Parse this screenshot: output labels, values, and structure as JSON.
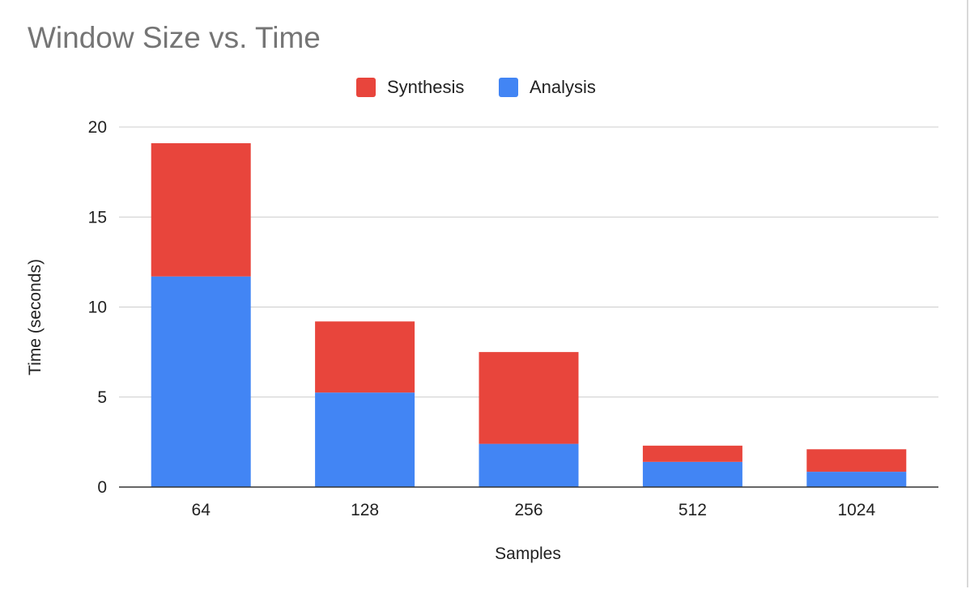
{
  "chart_data": {
    "type": "bar",
    "stacked": true,
    "title": "Window Size vs. Time",
    "xlabel": "Samples",
    "ylabel": "Time (seconds)",
    "categories": [
      "64",
      "128",
      "256",
      "512",
      "1024"
    ],
    "series": [
      {
        "name": "Analysis",
        "color": "#4285f4",
        "values": [
          11.7,
          5.25,
          2.4,
          1.4,
          0.85
        ]
      },
      {
        "name": "Synthesis",
        "color": "#e8453c",
        "values": [
          7.4,
          3.95,
          5.1,
          0.9,
          1.25
        ]
      }
    ],
    "legend_order": [
      "Synthesis",
      "Analysis"
    ],
    "legend_position": "top",
    "ylim": [
      0,
      20
    ],
    "yticks": [
      "0",
      "5",
      "10",
      "15",
      "20"
    ],
    "grid": true
  }
}
